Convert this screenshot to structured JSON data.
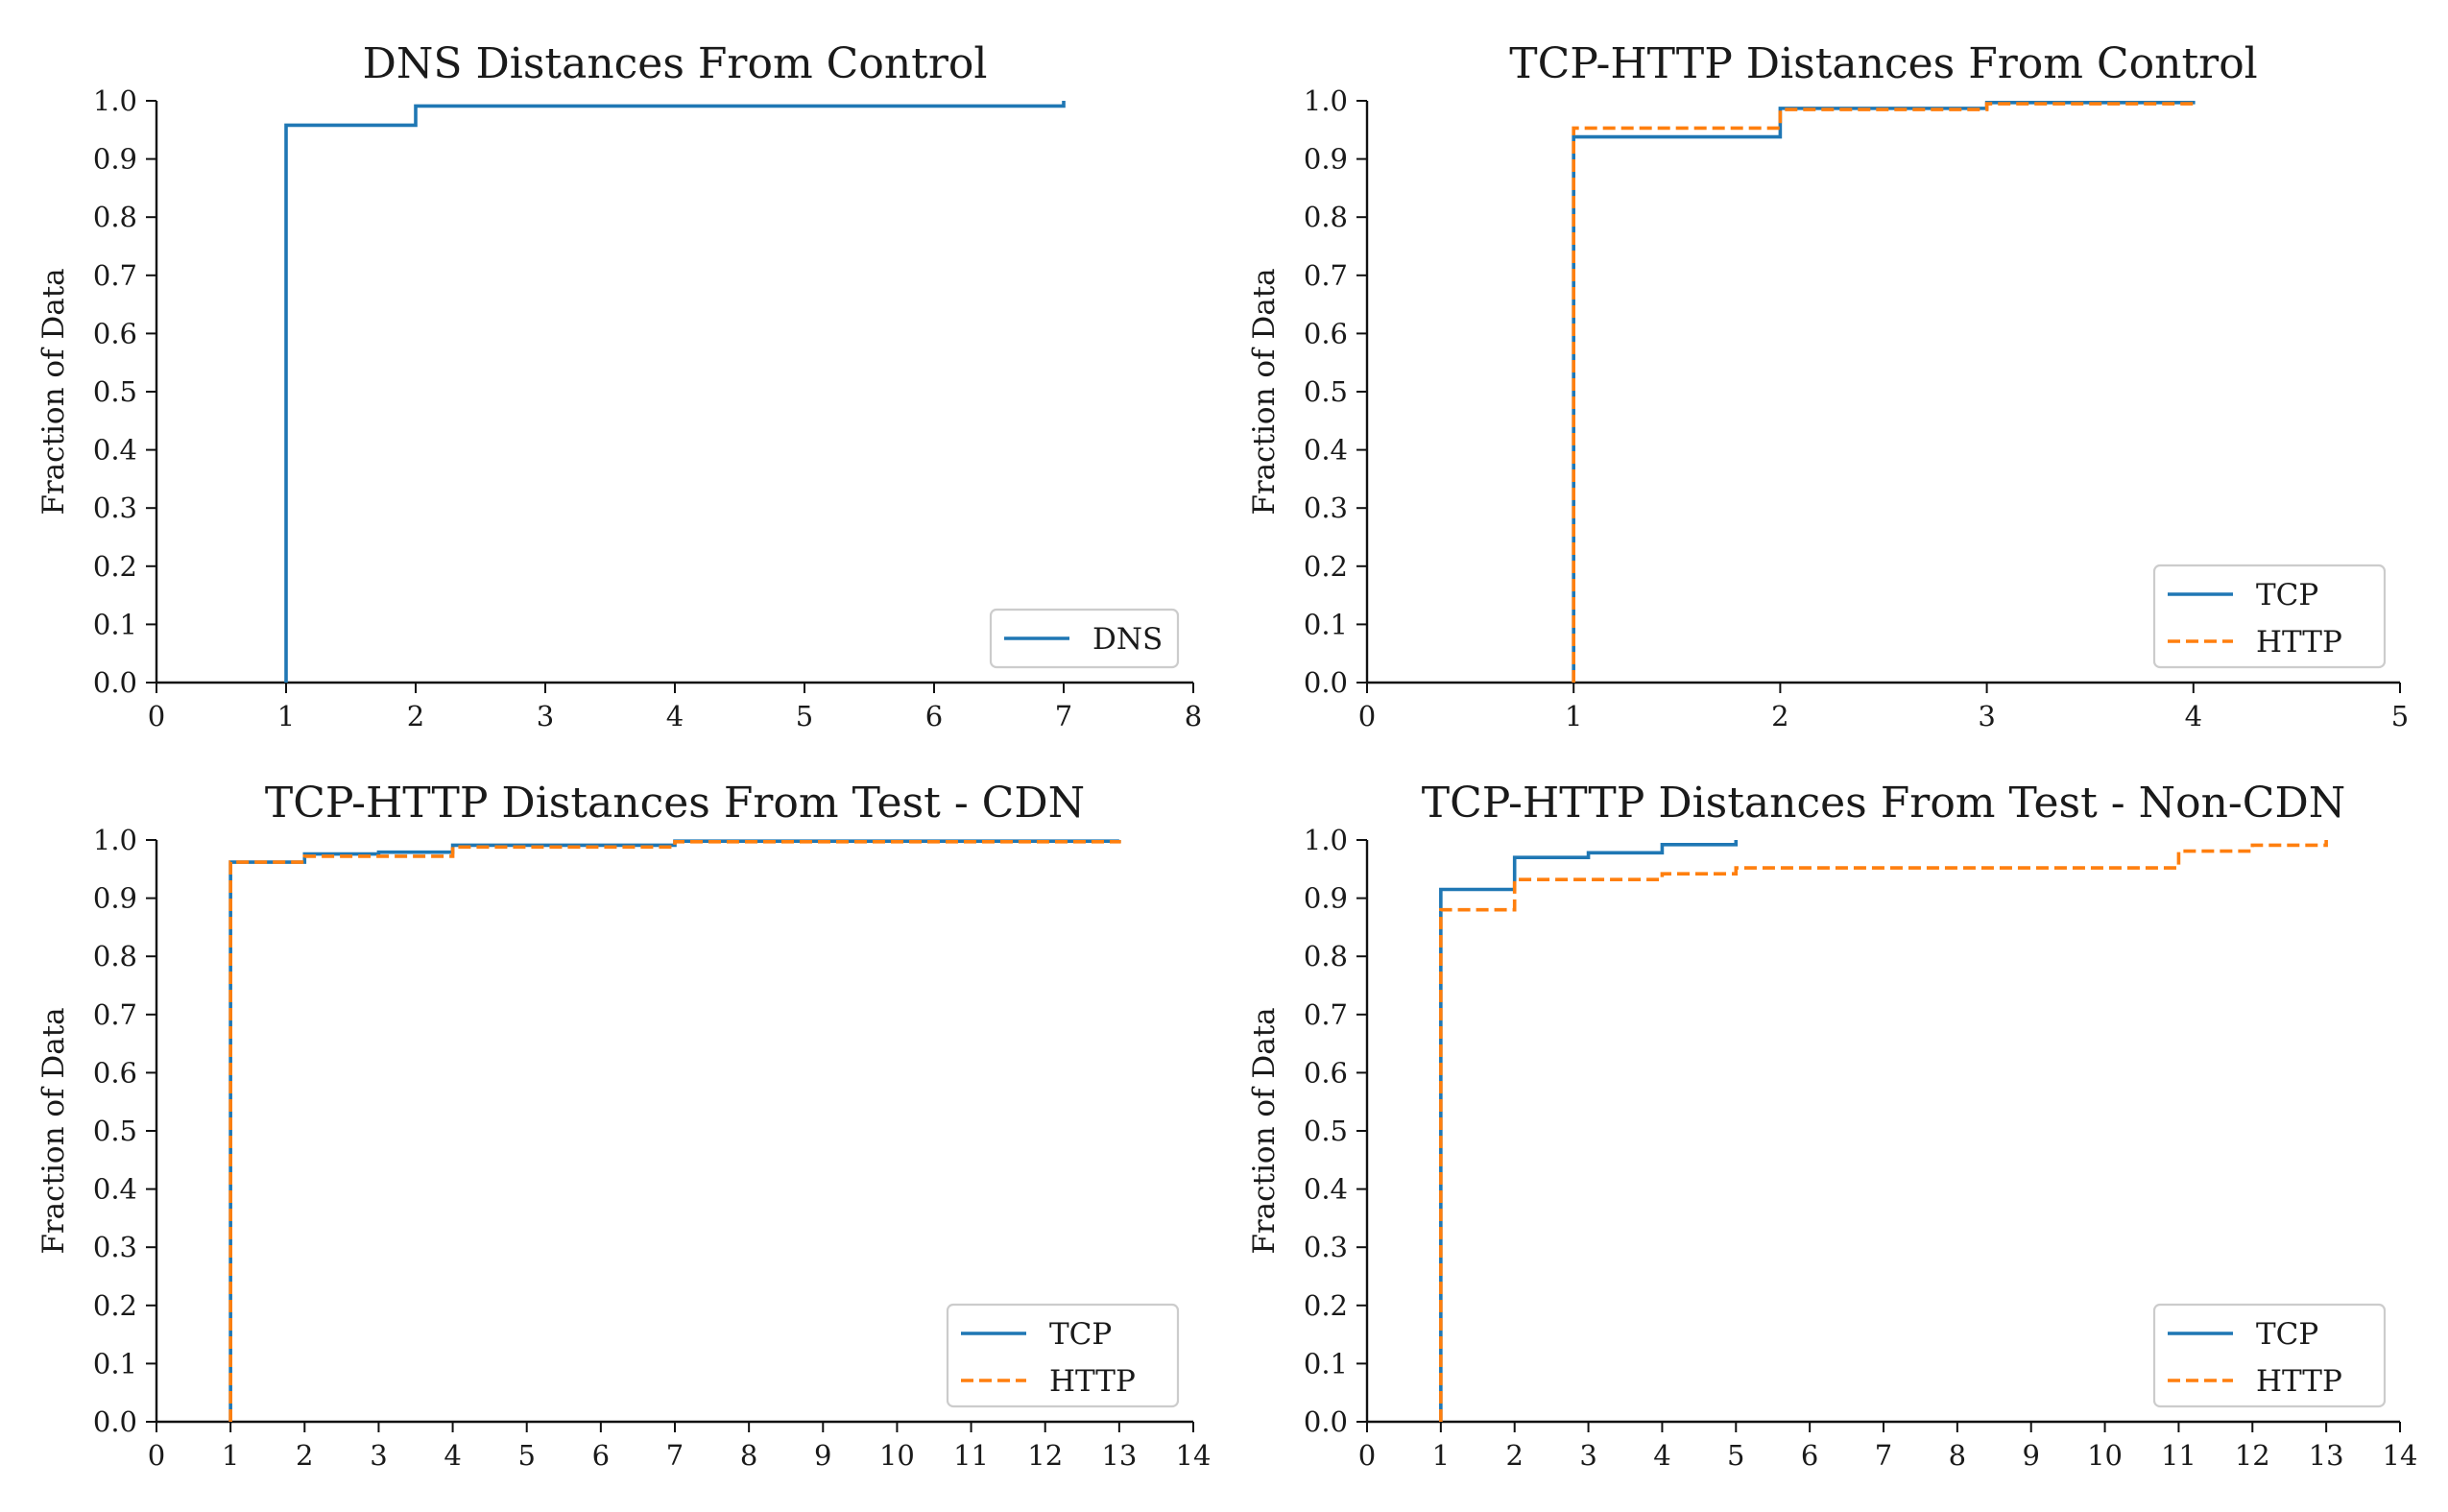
{
  "chart_data": [
    {
      "type": "line",
      "step": true,
      "title": "DNS Distances From Control",
      "xlabel": "",
      "ylabel": "Fraction of Data",
      "xlim": [
        0,
        8
      ],
      "ylim": [
        0,
        1.0
      ],
      "xticks": [
        "0",
        "1",
        "2",
        "3",
        "4",
        "5",
        "6",
        "7",
        "8"
      ],
      "yticks": [
        "0.0",
        "0.1",
        "0.2",
        "0.3",
        "0.4",
        "0.5",
        "0.6",
        "0.7",
        "0.8",
        "0.9",
        "1.0"
      ],
      "legend": "bottom-right",
      "series": [
        {
          "name": "DNS",
          "color": "#1f77b4",
          "dash": "solid",
          "x": [
            1,
            2,
            7
          ],
          "y": [
            0.958,
            0.991,
            1.0
          ]
        }
      ]
    },
    {
      "type": "line",
      "step": true,
      "title": "TCP-HTTP Distances From Control",
      "xlabel": "",
      "ylabel": "Fraction of Data",
      "xlim": [
        0,
        5
      ],
      "ylim": [
        0,
        1.0
      ],
      "xticks": [
        "0",
        "1",
        "2",
        "3",
        "4",
        "5"
      ],
      "yticks": [
        "0.0",
        "0.1",
        "0.2",
        "0.3",
        "0.4",
        "0.5",
        "0.6",
        "0.7",
        "0.8",
        "0.9",
        "1.0"
      ],
      "legend": "bottom-right",
      "series": [
        {
          "name": "TCP",
          "color": "#1f77b4",
          "dash": "solid",
          "x": [
            1,
            2,
            3,
            4
          ],
          "y": [
            0.938,
            0.987,
            0.997,
            1.0
          ]
        },
        {
          "name": "HTTP",
          "color": "#ff7f0e",
          "dash": "dashed",
          "x": [
            1,
            2,
            3,
            4
          ],
          "y": [
            0.953,
            0.985,
            0.995,
            1.0
          ]
        }
      ]
    },
    {
      "type": "line",
      "step": true,
      "title": "TCP-HTTP Distances From Test - CDN",
      "xlabel": "",
      "ylabel": "Fraction of Data",
      "xlim": [
        0,
        14
      ],
      "ylim": [
        0,
        1.0
      ],
      "xticks": [
        "0",
        "1",
        "2",
        "3",
        "4",
        "5",
        "6",
        "7",
        "8",
        "9",
        "10",
        "11",
        "12",
        "13",
        "14"
      ],
      "yticks": [
        "0.0",
        "0.1",
        "0.2",
        "0.3",
        "0.4",
        "0.5",
        "0.6",
        "0.7",
        "0.8",
        "0.9",
        "1.0"
      ],
      "legend": "bottom-right",
      "series": [
        {
          "name": "TCP",
          "color": "#1f77b4",
          "dash": "solid",
          "x": [
            1,
            2,
            3,
            4,
            7,
            13
          ],
          "y": [
            0.962,
            0.976,
            0.979,
            0.991,
            0.998,
            1.0
          ]
        },
        {
          "name": "HTTP",
          "color": "#ff7f0e",
          "dash": "dashed",
          "x": [
            1,
            2,
            4,
            7,
            13
          ],
          "y": [
            0.962,
            0.972,
            0.988,
            0.997,
            1.0
          ]
        }
      ]
    },
    {
      "type": "line",
      "step": true,
      "title": "TCP-HTTP Distances From Test - Non-CDN",
      "xlabel": "",
      "ylabel": "Fraction of Data",
      "xlim": [
        0,
        14
      ],
      "ylim": [
        0,
        1.0
      ],
      "xticks": [
        "0",
        "1",
        "2",
        "3",
        "4",
        "5",
        "6",
        "7",
        "8",
        "9",
        "10",
        "11",
        "12",
        "13",
        "14"
      ],
      "yticks": [
        "0.0",
        "0.1",
        "0.2",
        "0.3",
        "0.4",
        "0.5",
        "0.6",
        "0.7",
        "0.8",
        "0.9",
        "1.0"
      ],
      "legend": "bottom-right",
      "series": [
        {
          "name": "TCP",
          "color": "#1f77b4",
          "dash": "solid",
          "x": [
            1,
            2,
            3,
            4,
            5
          ],
          "y": [
            0.915,
            0.97,
            0.978,
            0.992,
            1.0
          ]
        },
        {
          "name": "HTTP",
          "color": "#ff7f0e",
          "dash": "dashed",
          "x": [
            1,
            2,
            4,
            5,
            11,
            12,
            13
          ],
          "y": [
            0.88,
            0.932,
            0.942,
            0.952,
            0.981,
            0.991,
            1.0
          ]
        }
      ]
    }
  ]
}
